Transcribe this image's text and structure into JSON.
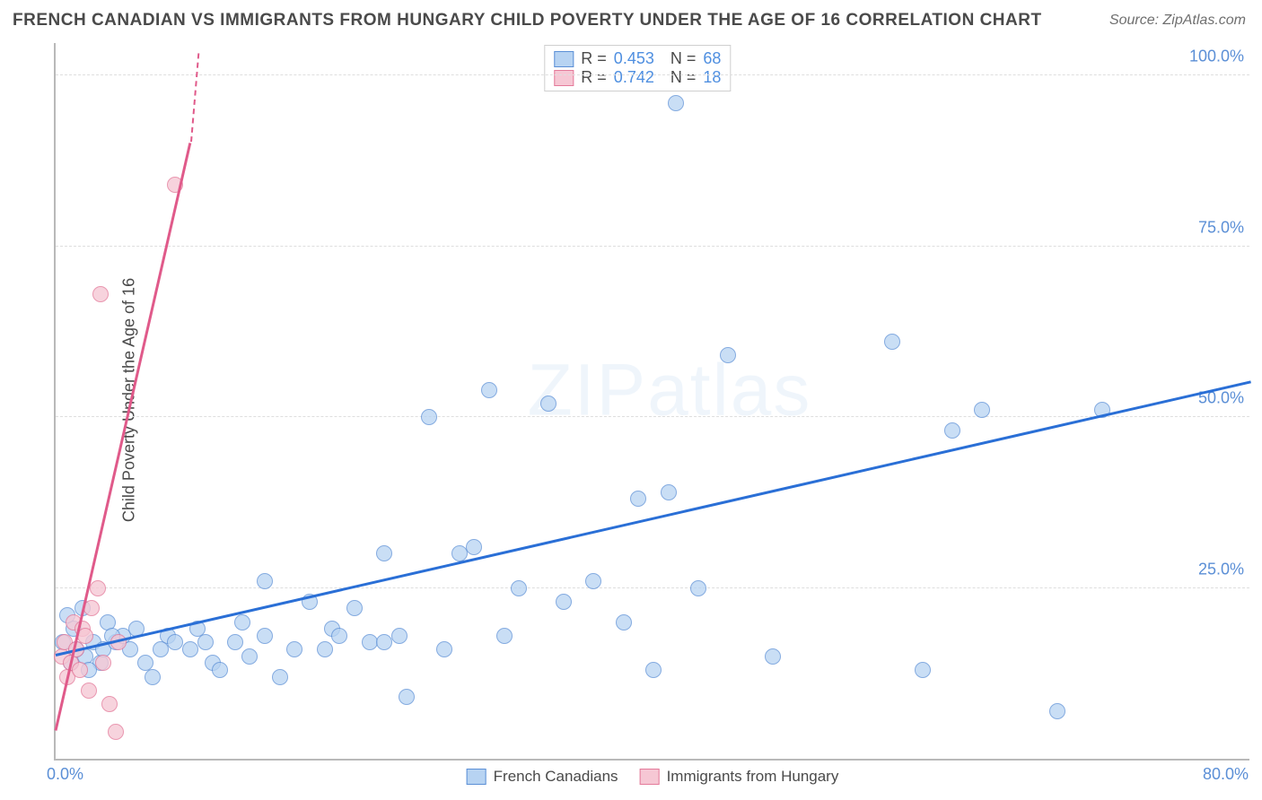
{
  "title": "FRENCH CANADIAN VS IMMIGRANTS FROM HUNGARY CHILD POVERTY UNDER THE AGE OF 16 CORRELATION CHART",
  "source": "Source: ZipAtlas.com",
  "ylabel": "Child Poverty Under the Age of 16",
  "watermark": "ZIPatlas",
  "chart": {
    "type": "scatter",
    "xlim": [
      0,
      80
    ],
    "ylim": [
      0,
      105
    ],
    "xticks": [
      {
        "v": 0,
        "l": "0.0%"
      },
      {
        "v": 80,
        "l": "80.0%"
      }
    ],
    "yticks": [
      {
        "v": 25,
        "l": "25.0%"
      },
      {
        "v": 50,
        "l": "50.0%"
      },
      {
        "v": 75,
        "l": "75.0%"
      },
      {
        "v": 100,
        "l": "100.0%"
      }
    ],
    "grid_y": [
      25,
      50,
      75,
      100
    ],
    "grid_color": "#dedede",
    "axis_color": "#b9b9b9",
    "background_color": "#ffffff",
    "tick_color": "#5b8fd6",
    "marker_radius": 9,
    "marker_border_width": 1.5,
    "series": [
      {
        "name": "French Canadians",
        "fill": "#b7d3f2",
        "stroke": "#5b8fd6",
        "opacity": 0.75,
        "R": "0.453",
        "N": "68",
        "trend": {
          "x1": 0,
          "y1": 15,
          "x2": 80,
          "y2": 55,
          "color": "#2a6fd6",
          "width": 3
        },
        "points": [
          [
            0.5,
            17
          ],
          [
            1,
            14
          ],
          [
            1.2,
            19
          ],
          [
            1.8,
            22
          ],
          [
            2,
            15
          ],
          [
            2.5,
            17
          ],
          [
            3,
            14
          ],
          [
            3.2,
            16
          ],
          [
            3.5,
            20
          ],
          [
            4,
            17
          ],
          [
            4.5,
            18
          ],
          [
            5,
            16
          ],
          [
            5.4,
            19
          ],
          [
            6,
            14
          ],
          [
            6.5,
            12
          ],
          [
            7,
            16
          ],
          [
            7.5,
            18
          ],
          [
            8,
            17
          ],
          [
            9,
            16
          ],
          [
            9.5,
            19
          ],
          [
            10,
            17
          ],
          [
            10.5,
            14
          ],
          [
            11,
            13
          ],
          [
            12,
            17
          ],
          [
            12.5,
            20
          ],
          [
            13,
            15
          ],
          [
            14,
            26
          ],
          [
            14,
            18
          ],
          [
            15,
            12
          ],
          [
            16,
            16
          ],
          [
            17,
            23
          ],
          [
            18,
            16
          ],
          [
            18.5,
            19
          ],
          [
            19,
            18
          ],
          [
            20,
            22
          ],
          [
            21,
            17
          ],
          [
            22,
            30
          ],
          [
            22,
            17
          ],
          [
            23,
            18
          ],
          [
            23.5,
            9
          ],
          [
            25,
            50
          ],
          [
            26,
            16
          ],
          [
            27,
            30
          ],
          [
            28,
            31
          ],
          [
            29,
            54
          ],
          [
            30,
            18
          ],
          [
            31,
            25
          ],
          [
            33,
            52
          ],
          [
            34,
            23
          ],
          [
            36,
            26
          ],
          [
            38,
            20
          ],
          [
            39,
            38
          ],
          [
            40,
            13
          ],
          [
            41,
            39
          ],
          [
            41.5,
            96
          ],
          [
            43,
            25
          ],
          [
            45,
            59
          ],
          [
            48,
            15
          ],
          [
            56,
            61
          ],
          [
            58,
            13
          ],
          [
            60,
            48
          ],
          [
            62,
            51
          ],
          [
            67,
            7
          ],
          [
            70,
            51
          ],
          [
            0.8,
            21
          ],
          [
            1.4,
            16
          ],
          [
            2.2,
            13
          ],
          [
            3.8,
            18
          ]
        ]
      },
      {
        "name": "Immigrants from Hungary",
        "fill": "#f6c7d4",
        "stroke": "#e47a9a",
        "opacity": 0.78,
        "R": "0.742",
        "N": "18",
        "trend": {
          "x1": 0,
          "y1": 4,
          "x2": 9,
          "y2": 90,
          "color": "#e05a8a",
          "width": 3,
          "dash_extend": {
            "x2": 9.5,
            "y2": 103
          }
        },
        "points": [
          [
            0.4,
            15
          ],
          [
            0.6,
            17
          ],
          [
            0.8,
            12
          ],
          [
            1,
            14
          ],
          [
            1.2,
            20
          ],
          [
            1.4,
            16
          ],
          [
            1.6,
            13
          ],
          [
            1.8,
            19
          ],
          [
            2,
            18
          ],
          [
            2.2,
            10
          ],
          [
            2.4,
            22
          ],
          [
            2.8,
            25
          ],
          [
            3,
            68
          ],
          [
            3.2,
            14
          ],
          [
            3.6,
            8
          ],
          [
            4,
            4
          ],
          [
            4.2,
            17
          ],
          [
            8,
            84
          ]
        ]
      }
    ],
    "legend_bottom": [
      {
        "label": "French Canadians",
        "fill": "#b7d3f2",
        "stroke": "#5b8fd6"
      },
      {
        "label": "Immigrants from Hungary",
        "fill": "#f6c7d4",
        "stroke": "#e47a9a"
      }
    ]
  }
}
